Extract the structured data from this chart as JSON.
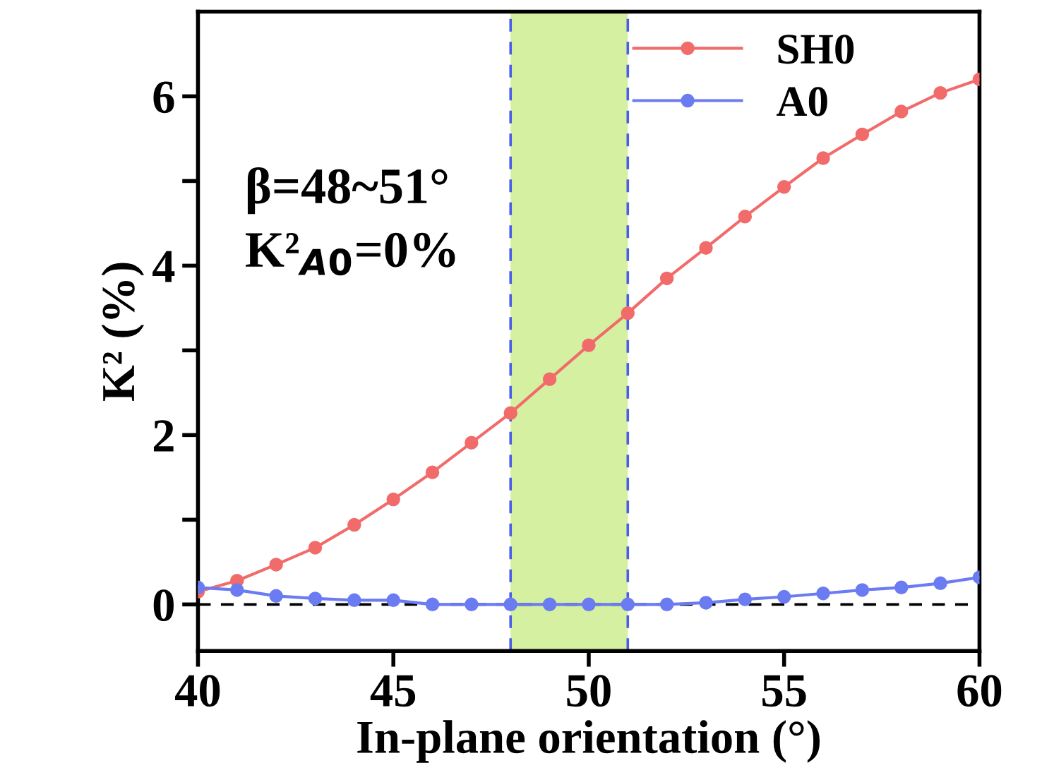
{
  "chart_data": {
    "type": "line",
    "xlabel": "In-plane orientation (°)",
    "ylabel": "K² (%)",
    "x": [
      40,
      41,
      42,
      43,
      44,
      45,
      46,
      47,
      48,
      49,
      50,
      51,
      52,
      53,
      54,
      55,
      56,
      57,
      58,
      59,
      60
    ],
    "series": [
      {
        "name": "SH0",
        "color": "#f26b6b",
        "values": [
          0.15,
          0.28,
          0.47,
          0.67,
          0.94,
          1.24,
          1.56,
          1.91,
          2.26,
          2.66,
          3.06,
          3.44,
          3.85,
          4.21,
          4.58,
          4.93,
          5.27,
          5.55,
          5.82,
          6.04,
          6.2
        ]
      },
      {
        "name": "A0",
        "color": "#6b7bf2",
        "values": [
          0.2,
          0.17,
          0.1,
          0.07,
          0.05,
          0.05,
          0.0,
          0.0,
          0.0,
          0.0,
          0.0,
          0.0,
          0.0,
          0.02,
          0.06,
          0.09,
          0.13,
          0.17,
          0.2,
          0.25,
          0.32
        ]
      }
    ],
    "xlim": [
      40,
      60
    ],
    "xticks": [
      40,
      45,
      50,
      55,
      60
    ],
    "ylim": [
      -0.55,
      7.0
    ],
    "yticks": [
      0,
      {
        "value": 1,
        "label": null
      },
      2,
      {
        "value": 3,
        "label": null
      },
      4,
      {
        "value": 5,
        "label": null
      },
      6
    ],
    "ref_lines": [
      {
        "axis": "y",
        "value": 0,
        "color": "#000000",
        "line_style": "dashed"
      },
      {
        "axis": "x",
        "value": 48,
        "color": "#4a5ee8",
        "line_style": "dashed"
      },
      {
        "axis": "x",
        "value": 51,
        "color": "#4a5ee8",
        "line_style": "dashed"
      }
    ],
    "bands": [
      {
        "axis": "x",
        "from": 48,
        "to": 51,
        "color": "#d4f0a0"
      }
    ],
    "annotations": [
      "β=48~51°",
      "K²$_{A0}$=0%"
    ],
    "legend": "top right",
    "marker": "circle",
    "line_style": "solid",
    "grid": false
  }
}
